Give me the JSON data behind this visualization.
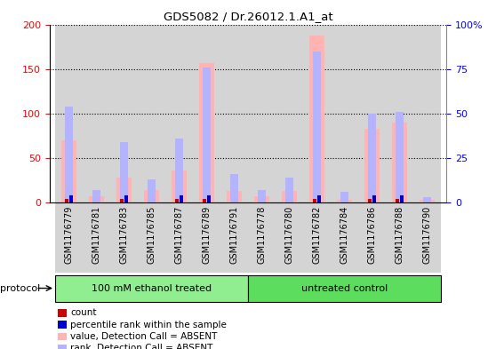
{
  "title": "GDS5082 / Dr.26012.1.A1_at",
  "samples": [
    "GSM1176779",
    "GSM1176781",
    "GSM1176783",
    "GSM1176785",
    "GSM1176787",
    "GSM1176789",
    "GSM1176791",
    "GSM1176778",
    "GSM1176780",
    "GSM1176782",
    "GSM1176784",
    "GSM1176786",
    "GSM1176788",
    "GSM1176790"
  ],
  "value_absent": [
    70,
    7,
    28,
    14,
    36,
    157,
    13,
    7,
    13,
    188,
    3,
    83,
    90,
    3
  ],
  "rank_absent": [
    54,
    7,
    34,
    13,
    36,
    76,
    16,
    7,
    14,
    85,
    6,
    50,
    51,
    3
  ],
  "count": [
    2,
    0,
    1,
    0,
    1,
    2,
    0,
    0,
    0,
    2,
    0,
    1,
    1,
    0
  ],
  "percentile_rank": [
    2,
    0,
    1,
    0,
    1,
    2,
    0,
    0,
    0,
    2,
    0,
    1,
    1,
    0
  ],
  "n_ethanol": 7,
  "n_untreated": 7,
  "group1_label": "100 mM ethanol treated",
  "group2_label": "untreated control",
  "protocol_label": "protocol",
  "left_ylim": [
    0,
    200
  ],
  "right_ylim": [
    0,
    100
  ],
  "left_yticks": [
    0,
    50,
    100,
    150,
    200
  ],
  "right_yticks": [
    0,
    25,
    50,
    75,
    100
  ],
  "right_yticklabels": [
    "0",
    "25",
    "50",
    "75",
    "100%"
  ],
  "color_value_absent": "#ffb3b3",
  "color_rank_absent": "#b3b3ff",
  "color_count": "#cc0000",
  "color_percentile_rank": "#0000cc",
  "plot_bg": "white",
  "col_bg": "#d4d4d4",
  "group1_color": "#90ee90",
  "group2_color": "#5ddd5d",
  "legend_items": [
    {
      "label": "count",
      "color": "#cc0000"
    },
    {
      "label": "percentile rank within the sample",
      "color": "#0000cc"
    },
    {
      "label": "value, Detection Call = ABSENT",
      "color": "#ffb3b3"
    },
    {
      "label": "rank, Detection Call = ABSENT",
      "color": "#b3b3ff"
    }
  ]
}
